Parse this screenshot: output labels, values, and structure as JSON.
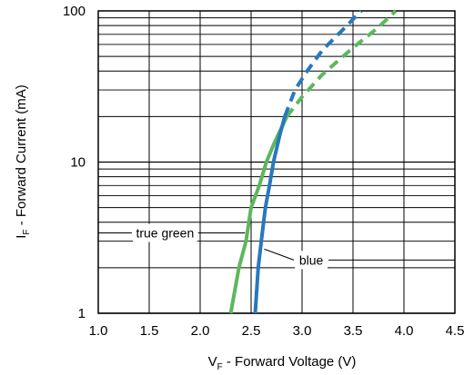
{
  "chart_data": {
    "type": "line",
    "xlabel": {
      "main": "V",
      "sub": "F",
      "rest": " - Forward Voltage (V)"
    },
    "ylabel": {
      "main": "I",
      "sub": "F",
      "rest": " - Forward Current (mA)"
    },
    "x_ticks": [
      "1.0",
      "1.5",
      "2.0",
      "2.5",
      "3.0",
      "3.5",
      "4.0",
      "4.5"
    ],
    "y_ticks": [
      "1",
      "10",
      "100"
    ],
    "xlim": [
      1.0,
      4.5
    ],
    "ylim": [
      1,
      100
    ],
    "y_scale": "log",
    "grid": true,
    "series": [
      {
        "name": "true green",
        "color": "#5cb85c",
        "solid_points": [
          [
            2.3,
            1
          ],
          [
            2.38,
            2
          ],
          [
            2.45,
            3
          ],
          [
            2.5,
            5
          ],
          [
            2.58,
            7
          ],
          [
            2.65,
            10
          ],
          [
            2.72,
            13
          ],
          [
            2.85,
            20
          ]
        ],
        "dashed_points": [
          [
            2.85,
            20
          ],
          [
            3.0,
            27
          ],
          [
            3.2,
            38
          ],
          [
            3.5,
            57
          ],
          [
            3.75,
            78
          ],
          [
            3.92,
            100
          ]
        ]
      },
      {
        "name": "blue",
        "color": "#2878be",
        "solid_points": [
          [
            2.54,
            1
          ],
          [
            2.57,
            2
          ],
          [
            2.6,
            3
          ],
          [
            2.64,
            5
          ],
          [
            2.68,
            7
          ],
          [
            2.72,
            10
          ],
          [
            2.78,
            15
          ],
          [
            2.83,
            20
          ]
        ],
        "dashed_points": [
          [
            2.83,
            20
          ],
          [
            2.93,
            30
          ],
          [
            3.05,
            40
          ],
          [
            3.2,
            55
          ],
          [
            3.4,
            75
          ],
          [
            3.58,
            100
          ]
        ]
      }
    ]
  }
}
